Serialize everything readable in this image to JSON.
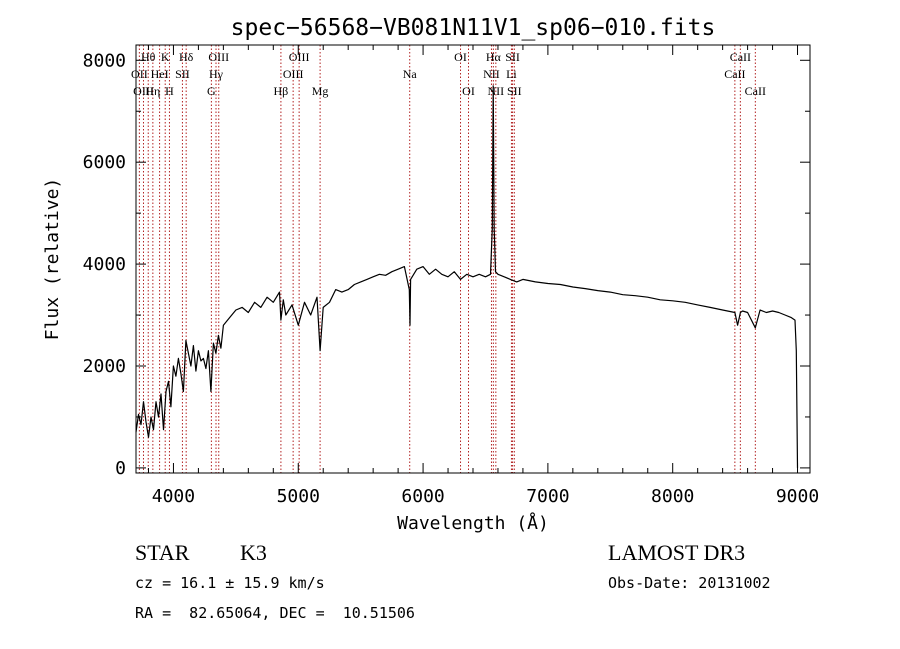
{
  "chart_data": {
    "type": "line",
    "title": "spec−56568−VB081N11V1_sp06−010.fits",
    "xlabel": "Wavelength (Å)",
    "ylabel": "Flux (relative)",
    "xlim": [
      3700,
      9100
    ],
    "ylim": [
      -100,
      8300
    ],
    "xticks": [
      4000,
      5000,
      6000,
      7000,
      8000,
      9000
    ],
    "yticks": [
      0,
      2000,
      4000,
      6000,
      8000
    ],
    "series": [
      {
        "name": "flux",
        "x": [
          3700,
          3720,
          3740,
          3760,
          3780,
          3800,
          3820,
          3840,
          3860,
          3880,
          3900,
          3920,
          3940,
          3960,
          3980,
          4000,
          4020,
          4040,
          4060,
          4080,
          4100,
          4120,
          4140,
          4160,
          4180,
          4200,
          4220,
          4240,
          4260,
          4280,
          4300,
          4320,
          4340,
          4360,
          4380,
          4400,
          4450,
          4500,
          4550,
          4600,
          4650,
          4700,
          4750,
          4800,
          4850,
          4861,
          4880,
          4900,
          4950,
          5000,
          5050,
          5100,
          5150,
          5175,
          5200,
          5250,
          5300,
          5350,
          5400,
          5450,
          5500,
          5550,
          5600,
          5650,
          5700,
          5750,
          5800,
          5850,
          5890,
          5895,
          5900,
          5950,
          6000,
          6050,
          6100,
          6150,
          6200,
          6250,
          6300,
          6350,
          6400,
          6450,
          6500,
          6540,
          6555,
          6562,
          6570,
          6580,
          6600,
          6650,
          6700,
          6750,
          6800,
          6900,
          7000,
          7100,
          7200,
          7300,
          7400,
          7500,
          7600,
          7700,
          7800,
          7900,
          8000,
          8100,
          8200,
          8300,
          8400,
          8498,
          8520,
          8542,
          8560,
          8600,
          8662,
          8700,
          8750,
          8800,
          8850,
          8900,
          8950,
          8980,
          8990,
          9000
        ],
        "y": [
          700,
          1050,
          850,
          1300,
          900,
          600,
          1000,
          750,
          1300,
          1000,
          1450,
          750,
          1500,
          1700,
          1200,
          2000,
          1800,
          2150,
          1850,
          1500,
          2500,
          2250,
          2000,
          2400,
          1900,
          2300,
          2100,
          2150,
          1950,
          2300,
          1500,
          2450,
          2250,
          2600,
          2350,
          2800,
          2950,
          3100,
          3150,
          3050,
          3250,
          3150,
          3350,
          3250,
          3450,
          2900,
          3300,
          3000,
          3200,
          2800,
          3250,
          3000,
          3350,
          2300,
          3150,
          3250,
          3500,
          3450,
          3500,
          3600,
          3650,
          3700,
          3750,
          3800,
          3780,
          3850,
          3900,
          3950,
          3500,
          2800,
          3700,
          3900,
          3950,
          3800,
          3900,
          3800,
          3750,
          3850,
          3700,
          3800,
          3750,
          3800,
          3750,
          3800,
          4700,
          7500,
          4700,
          3850,
          3800,
          3750,
          3700,
          3650,
          3700,
          3650,
          3620,
          3600,
          3550,
          3520,
          3480,
          3450,
          3400,
          3380,
          3350,
          3300,
          3280,
          3250,
          3200,
          3150,
          3100,
          3050,
          2800,
          3050,
          3080,
          3050,
          2750,
          3100,
          3050,
          3080,
          3050,
          3000,
          2950,
          2900,
          2300,
          0
        ]
      }
    ],
    "line_labels": [
      {
        "label": "Hθ",
        "x": 3798,
        "row": 1
      },
      {
        "label": "OII",
        "x": 3727,
        "row": 2
      },
      {
        "label": "OIII",
        "x": 3760,
        "row": 3
      },
      {
        "label": "Hη",
        "x": 3835,
        "row": 3
      },
      {
        "label": "HeI",
        "x": 3889,
        "row": 2
      },
      {
        "label": "K",
        "x": 3934,
        "row": 1
      },
      {
        "label": "H",
        "x": 3968,
        "row": 3
      },
      {
        "label": "SII",
        "x": 4072,
        "row": 2
      },
      {
        "label": "Hδ",
        "x": 4102,
        "row": 1
      },
      {
        "label": "G",
        "x": 4304,
        "row": 3
      },
      {
        "label": "OIII",
        "x": 4363,
        "row": 1
      },
      {
        "label": "Hγ",
        "x": 4341,
        "row": 2
      },
      {
        "label": "Hβ",
        "x": 4861,
        "row": 3
      },
      {
        "label": "OIII",
        "x": 5007,
        "row": 1
      },
      {
        "label": "OIII",
        "x": 4959,
        "row": 2
      },
      {
        "label": "Mg",
        "x": 5175,
        "row": 3
      },
      {
        "label": "Na",
        "x": 5893,
        "row": 2
      },
      {
        "label": "OI",
        "x": 6300,
        "row": 1
      },
      {
        "label": "OI",
        "x": 6364,
        "row": 3
      },
      {
        "label": "Hα",
        "x": 6563,
        "row": 1
      },
      {
        "label": "NII",
        "x": 6548,
        "row": 2
      },
      {
        "label": "NII",
        "x": 6583,
        "row": 3
      },
      {
        "label": "SII",
        "x": 6717,
        "row": 1
      },
      {
        "label": "Li",
        "x": 6708,
        "row": 2
      },
      {
        "label": "SII",
        "x": 6731,
        "row": 3
      },
      {
        "label": "CaII",
        "x": 8542,
        "row": 1
      },
      {
        "label": "CaII",
        "x": 8498,
        "row": 2
      },
      {
        "label": "CaII",
        "x": 8662,
        "row": 3
      }
    ],
    "annotations": {
      "class_label": "STAR",
      "subclass": "K3",
      "survey": "LAMOST DR3",
      "cz": "cz = 16.1 ± 15.9 km/s",
      "obs_date": "Obs-Date: 20131002",
      "coords": "RA =  82.65064, DEC =  10.51506"
    }
  }
}
